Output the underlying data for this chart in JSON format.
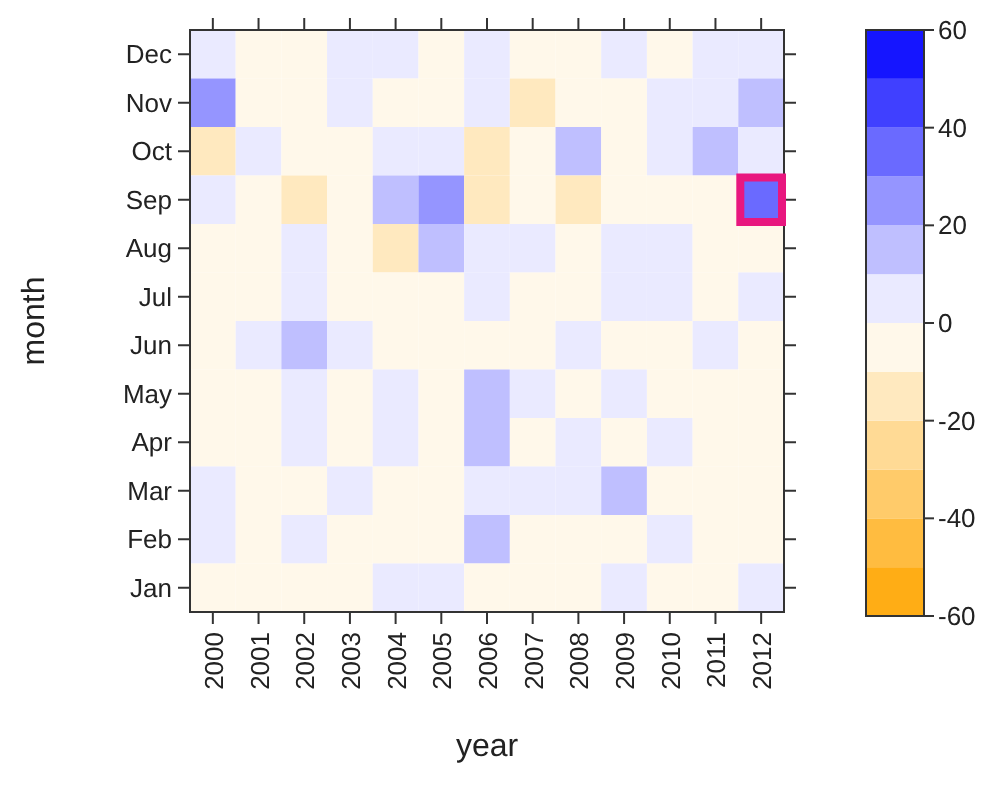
{
  "chart_data": {
    "type": "heatmap",
    "xlabel": "year",
    "ylabel": "month",
    "categories": [
      "2000",
      "2001",
      "2002",
      "2003",
      "2004",
      "2005",
      "2006",
      "2007",
      "2008",
      "2009",
      "2010",
      "2011",
      "2012"
    ],
    "y_categories": [
      "Dec",
      "Nov",
      "Oct",
      "Sep",
      "Aug",
      "Jul",
      "Jun",
      "May",
      "Apr",
      "Mar",
      "Feb",
      "Jan"
    ],
    "cells": [
      [
        5,
        -5,
        -5,
        5,
        5,
        -5,
        5,
        -5,
        -5,
        5,
        -5,
        5,
        5
      ],
      [
        25,
        -5,
        -5,
        5,
        -5,
        -5,
        5,
        -15,
        -5,
        -5,
        5,
        5,
        15
      ],
      [
        -15,
        5,
        -5,
        -5,
        5,
        5,
        -15,
        -5,
        15,
        -5,
        5,
        15,
        5
      ],
      [
        5,
        -5,
        -15,
        -5,
        15,
        25,
        -15,
        -5,
        -15,
        -5,
        -5,
        -5,
        35
      ],
      [
        -5,
        -5,
        5,
        -5,
        -15,
        15,
        5,
        5,
        -5,
        5,
        5,
        -5,
        -5
      ],
      [
        -5,
        -5,
        5,
        -5,
        -5,
        -5,
        5,
        -5,
        -5,
        5,
        5,
        -5,
        5
      ],
      [
        -5,
        5,
        15,
        5,
        -5,
        -5,
        -5,
        -5,
        5,
        -5,
        -5,
        5,
        -5
      ],
      [
        -5,
        -5,
        5,
        -5,
        5,
        -5,
        15,
        5,
        -5,
        5,
        -5,
        -5,
        -5
      ],
      [
        -5,
        -5,
        5,
        -5,
        5,
        -5,
        15,
        -5,
        5,
        -5,
        5,
        -5,
        -5
      ],
      [
        5,
        -5,
        -5,
        5,
        -5,
        -5,
        5,
        5,
        5,
        15,
        -5,
        -5,
        -5
      ],
      [
        5,
        -5,
        5,
        -5,
        -5,
        -5,
        15,
        -5,
        -5,
        -5,
        5,
        -5,
        -5
      ],
      [
        -5,
        -5,
        -5,
        -5,
        5,
        5,
        -5,
        -5,
        -5,
        5,
        -5,
        -5,
        5
      ]
    ],
    "clim": [
      -60,
      60
    ],
    "cticks": [
      -60,
      -40,
      -20,
      0,
      20,
      40,
      60
    ]
  }
}
